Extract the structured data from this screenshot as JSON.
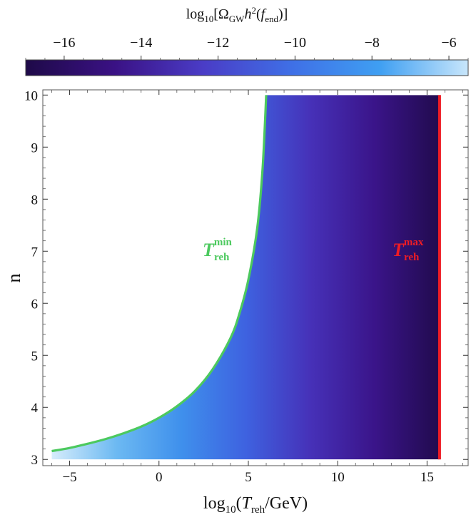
{
  "chart_data": {
    "type": "heatmap",
    "colorbar": {
      "title_prefix": "log",
      "title_prefix_sub": "10",
      "title_open": "[Ω",
      "title_omega_sub": "GW",
      "title_h": "h",
      "title_h_sup": "2",
      "title_f_open": "(",
      "title_f": "f",
      "title_f_sub": "end",
      "title_close": ")]",
      "range": [
        -17,
        -5.5
      ],
      "ticks": [
        -16,
        -14,
        -12,
        -10,
        -8,
        -6
      ],
      "tick_labels": [
        "−16",
        "−14",
        "−12",
        "−10",
        "−8",
        "−6"
      ],
      "colors": [
        "#1e0a48",
        "#3a1184",
        "#4a3cc6",
        "#3f6fe6",
        "#3f9ff2",
        "#c8e6fb"
      ]
    },
    "x_axis": {
      "label_prefix": "log",
      "label_prefix_sub": "10",
      "label_open": "(",
      "label_T": "T",
      "label_T_sub": "reh",
      "label_rest": "/GeV)",
      "range": [
        -6.5,
        17.3
      ],
      "ticks": [
        -5,
        0,
        5,
        10,
        15
      ],
      "tick_labels": [
        "−5",
        "0",
        "5",
        "10",
        "15"
      ]
    },
    "y_axis": {
      "label": "n",
      "range": [
        2.88,
        10.1
      ],
      "ticks": [
        3,
        4,
        5,
        6,
        7,
        8,
        9,
        10
      ],
      "tick_labels": [
        "3",
        "4",
        "5",
        "6",
        "7",
        "8",
        "9",
        "10"
      ]
    },
    "series": [
      {
        "name_T": "T",
        "name_sup": "min",
        "name_sub": "reh",
        "color": "#4cc95e",
        "points": [
          [
            -6.0,
            3.16
          ],
          [
            -5,
            3.22
          ],
          [
            -4,
            3.3
          ],
          [
            -3,
            3.39
          ],
          [
            -2,
            3.5
          ],
          [
            -1,
            3.63
          ],
          [
            0,
            3.8
          ],
          [
            1,
            4.02
          ],
          [
            2,
            4.31
          ],
          [
            3,
            4.73
          ],
          [
            4,
            5.33
          ],
          [
            4.5,
            5.8
          ],
          [
            5,
            6.45
          ],
          [
            5.5,
            7.45
          ],
          [
            5.8,
            8.6
          ],
          [
            6.0,
            10.0
          ]
        ]
      },
      {
        "name_T": "T",
        "name_sup": "max",
        "name_sub": "reh",
        "color": "#ee1c25",
        "x_value": 15.7
      }
    ],
    "heatmap": {
      "description_of_fill": "value depends on log10(T_reh) only, brightest near the green curve and darkest at the red line",
      "value_at_T_min": -6,
      "value_at_T_max": -17
    }
  }
}
